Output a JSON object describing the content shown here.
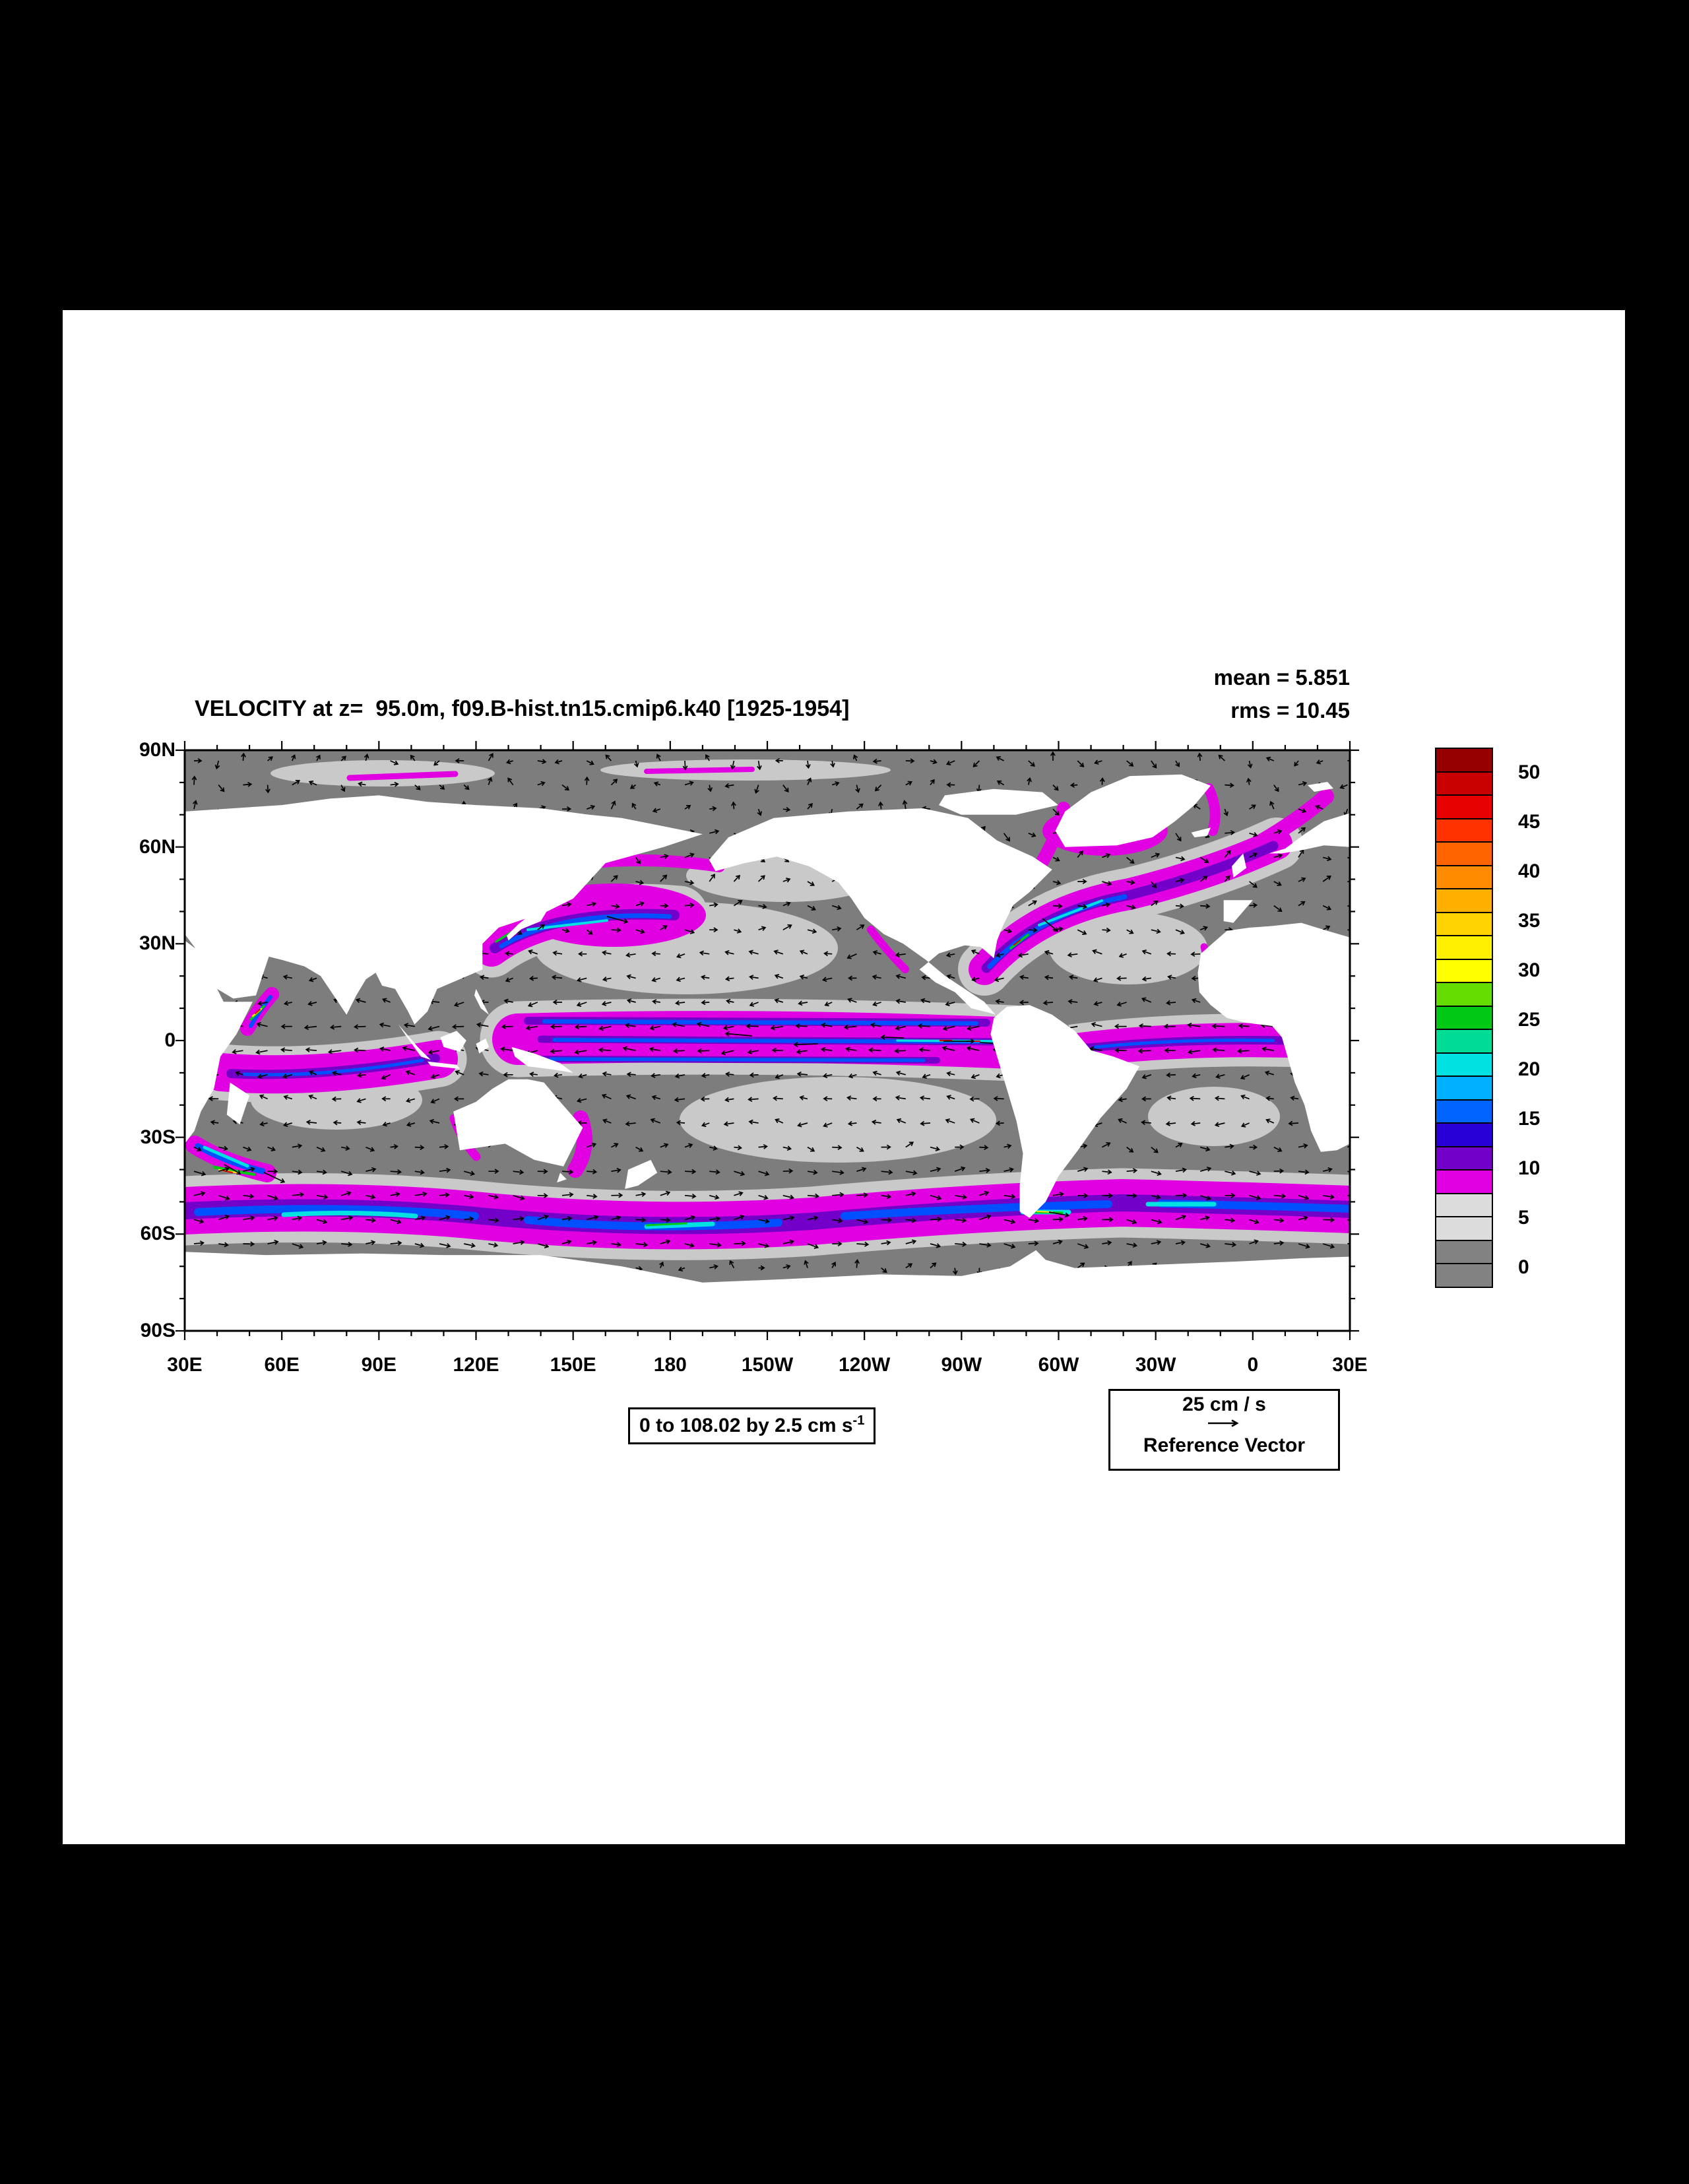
{
  "title": "VELOCITY at z=  95.0m, f09.B-hist.tn15.cmip6.k40 [1925-1954]",
  "stats": {
    "mean": "mean = 5.851",
    "rms": "rms = 10.45"
  },
  "axes": {
    "lat_labels": [
      "90N",
      "60N",
      "30N",
      "0",
      "30S",
      "60S",
      "90S"
    ],
    "lon_labels": [
      "30E",
      "60E",
      "90E",
      "120E",
      "150E",
      "180",
      "150W",
      "120W",
      "90W",
      "60W",
      "30W",
      "0",
      "30E"
    ]
  },
  "colorbar": {
    "tick_labels": [
      "50",
      "45",
      "40",
      "35",
      "30",
      "25",
      "20",
      "15",
      "10",
      "5",
      "0"
    ],
    "cells": [
      "#960000",
      "#C80000",
      "#E60000",
      "#FF3200",
      "#FF6400",
      "#FF8C00",
      "#FFAF00",
      "#FFD200",
      "#FFF000",
      "#FFFF00",
      "#64DC00",
      "#00C814",
      "#00DC96",
      "#00E1E1",
      "#00AFFF",
      "#0064FF",
      "#2800D7",
      "#7300C8",
      "#E100E1",
      "#DCDCDC",
      "#DCDCDC",
      "#828282",
      "#828282"
    ]
  },
  "annotations": {
    "range_text": "0 to 108.02 by 2.5 cm s",
    "range_sup": "-1",
    "ref_value": "25 cm / s",
    "ref_label": "Reference Vector"
  },
  "chart_data": {
    "type": "heatmap",
    "variant": "ocean-velocity-magnitude-map-with-vector-field",
    "title": "VELOCITY at z=  95.0m, f09.B-hist.tn15.cmip6.k40 [1925-1954]",
    "depth_m": 95.0,
    "case": "f09.B-hist.tn15.cmip6.k40",
    "period": "1925-1954",
    "units": "cm/s",
    "mean": 5.851,
    "rms": 10.45,
    "contour_range": {
      "min": 0,
      "max": 108.02,
      "interval": 2.5
    },
    "colorbar_ticks": [
      50,
      45,
      40,
      35,
      30,
      25,
      20,
      15,
      10,
      5,
      0
    ],
    "x_axis": {
      "ticks": [
        "30E",
        "60E",
        "90E",
        "120E",
        "150E",
        "180",
        "150W",
        "120W",
        "90W",
        "60W",
        "30W",
        "0",
        "30E"
      ],
      "minor_tick_interval_deg": 10
    },
    "y_axis": {
      "ticks": [
        "90N",
        "60N",
        "30N",
        "0",
        "30S",
        "60S",
        "90S"
      ],
      "minor_tick_interval_deg": 10
    },
    "reference_vector": {
      "value": 25,
      "units": "cm / s"
    },
    "legend_position": "right"
  }
}
